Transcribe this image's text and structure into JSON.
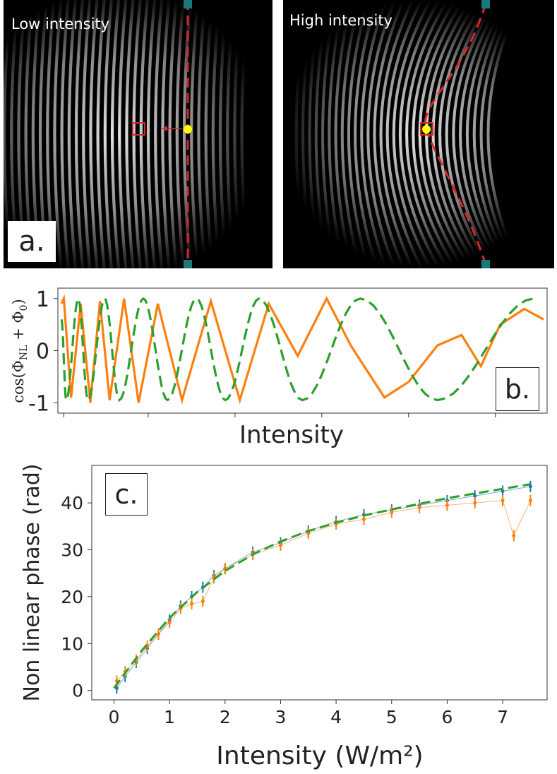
{
  "panels": {
    "a": {
      "letter": "a.",
      "left_title": "Low intensity",
      "right_title": "High intensity",
      "guide_color": "#d62728",
      "marker_color": "#ffff00",
      "handle_color": "#1a7a7a"
    },
    "b": {
      "letter": "b."
    },
    "c": {
      "letter": "c."
    }
  },
  "chart_data": [
    {
      "type": "line",
      "panel": "b",
      "ylabel": "cos(Φ_NL + Φ_0)",
      "xlabel": "Intensity",
      "ylim": [
        -1.2,
        1.2
      ],
      "yticks": [
        1,
        0,
        -1
      ],
      "x_tick_labels_shown": false,
      "series": [
        {
          "color": "#ff7f0e",
          "style": "solid",
          "description_points": [
            [
              0.0,
              0.9
            ],
            [
              0.005,
              1.0
            ],
            [
              0.02,
              -0.9
            ],
            [
              0.04,
              0.9
            ],
            [
              0.06,
              -1.0
            ],
            [
              0.08,
              0.95
            ],
            [
              0.1,
              -0.95
            ],
            [
              0.13,
              1.0
            ],
            [
              0.16,
              -1.0
            ],
            [
              0.2,
              0.9
            ],
            [
              0.25,
              -0.95
            ],
            [
              0.31,
              0.95
            ],
            [
              0.37,
              -0.95
            ],
            [
              0.43,
              0.9
            ],
            [
              0.49,
              -0.1
            ],
            [
              0.55,
              1.0
            ],
            [
              0.6,
              0.1
            ],
            [
              0.67,
              -0.9
            ],
            [
              0.72,
              -0.6
            ],
            [
              0.78,
              0.1
            ],
            [
              0.83,
              0.3
            ],
            [
              0.87,
              -0.3
            ],
            [
              0.91,
              0.5
            ],
            [
              0.96,
              0.8
            ],
            [
              1.0,
              0.6
            ]
          ]
        },
        {
          "color": "#2ca02c",
          "style": "dashed",
          "description_points": [
            [
              0.0,
              0.6
            ],
            [
              0.01,
              -0.95
            ],
            [
              0.035,
              1.0
            ],
            [
              0.055,
              -0.95
            ],
            [
              0.09,
              1.0
            ],
            [
              0.12,
              -0.95
            ],
            [
              0.17,
              1.0
            ],
            [
              0.22,
              -0.95
            ],
            [
              0.28,
              1.0
            ],
            [
              0.34,
              -0.95
            ],
            [
              0.41,
              1.0
            ],
            [
              0.5,
              -0.95
            ],
            [
              0.62,
              1.0
            ],
            [
              0.78,
              -0.95
            ],
            [
              0.98,
              1.0
            ]
          ]
        }
      ]
    },
    {
      "type": "line",
      "panel": "c",
      "xlabel": "Intensity (W/m²)",
      "ylabel": "Non linear phase (rad)",
      "xlim": [
        -0.4,
        7.8
      ],
      "ylim": [
        -2,
        48
      ],
      "xticks": [
        0,
        1,
        2,
        3,
        4,
        5,
        6,
        7
      ],
      "yticks": [
        0,
        10,
        20,
        30,
        40
      ],
      "series": [
        {
          "color": "#1f77b4",
          "style": "markers-errorbars",
          "x": [
            0.05,
            0.2,
            0.4,
            0.6,
            0.8,
            1.0,
            1.2,
            1.4,
            1.6,
            1.8,
            2.0,
            2.5,
            3.0,
            3.5,
            4.0,
            4.5,
            5.0,
            5.5,
            6.0,
            6.5,
            7.0,
            7.5
          ],
          "y": [
            0.5,
            3.0,
            6.0,
            9.0,
            12.0,
            15.0,
            18.0,
            20.0,
            22.0,
            24.5,
            26.0,
            29.5,
            31.5,
            34.0,
            36.0,
            37.5,
            38.5,
            39.5,
            40.5,
            41.5,
            42.5,
            43.5
          ]
        },
        {
          "color": "#ff7f0e",
          "style": "markers-errorbars",
          "x": [
            0.05,
            0.2,
            0.4,
            0.6,
            0.8,
            1.0,
            1.2,
            1.4,
            1.6,
            1.8,
            2.0,
            2.5,
            3.0,
            3.5,
            4.0,
            4.5,
            5.0,
            5.5,
            6.0,
            6.5,
            7.0,
            7.2,
            7.5
          ],
          "y": [
            2.0,
            4.0,
            6.5,
            9.5,
            12.0,
            14.5,
            17.5,
            18.5,
            19.0,
            24.0,
            26.0,
            29.0,
            31.0,
            33.5,
            35.5,
            36.5,
            38.0,
            39.0,
            39.5,
            40.0,
            40.5,
            33.0,
            40.5
          ]
        },
        {
          "color": "#2ca02c",
          "style": "dashed",
          "x": [
            0,
            0.5,
            1,
            1.5,
            2,
            2.5,
            3,
            3.5,
            4,
            4.5,
            5,
            5.5,
            6,
            6.5,
            7,
            7.5
          ],
          "y": [
            0.5,
            8.5,
            15.5,
            21.0,
            25.5,
            29.0,
            31.8,
            34.0,
            35.8,
            37.3,
            38.6,
            39.8,
            41.0,
            42.0,
            43.0,
            44.0
          ]
        }
      ]
    }
  ]
}
